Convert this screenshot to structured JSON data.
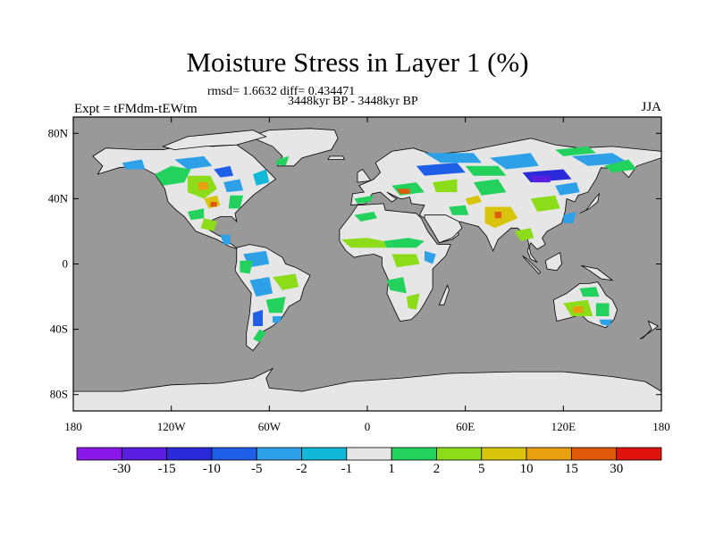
{
  "title": "Moisture Stress in Layer 1 (%)",
  "stats_line": "rmsd= 1.6632 diff= 0.434471",
  "period_line": "3448kyr BP - 3448kyr BP",
  "experiment_label": "Expt = tFMdm-tEWtm",
  "season_label": "JJA",
  "map": {
    "projection": "cylindrical equidistant",
    "lon_range": [
      -180,
      180
    ],
    "lat_range": [
      -90,
      90
    ],
    "ocean_color": "#999999",
    "land_neutral_color": "#e6e6e6",
    "y_ticks": [
      {
        "lat": 80,
        "label": "80N"
      },
      {
        "lat": 40,
        "label": "40N"
      },
      {
        "lat": 0,
        "label": "0"
      },
      {
        "lat": -40,
        "label": "40S"
      },
      {
        "lat": -80,
        "label": "80S"
      }
    ],
    "x_ticks": [
      {
        "lon": -180,
        "label": "180"
      },
      {
        "lon": -120,
        "label": "120W"
      },
      {
        "lon": -60,
        "label": "60W"
      },
      {
        "lon": 0,
        "label": "0"
      },
      {
        "lon": 60,
        "label": "60E"
      },
      {
        "lon": 120,
        "label": "120E"
      },
      {
        "lon": 180,
        "label": "180"
      }
    ]
  },
  "colorbar": {
    "colors": [
      "#8a18e8",
      "#5a1ee0",
      "#2a2ad8",
      "#1f5ee6",
      "#2ea0e8",
      "#12b8d8",
      "#e6e6e6",
      "#22d25c",
      "#8cdc1a",
      "#d8c40c",
      "#e8a010",
      "#e05a0c",
      "#e0140c"
    ],
    "labels": [
      "-30",
      "-15",
      "-10",
      "-5",
      "-2",
      "-1",
      "1",
      "2",
      "5",
      "10",
      "15",
      "30"
    ]
  }
}
